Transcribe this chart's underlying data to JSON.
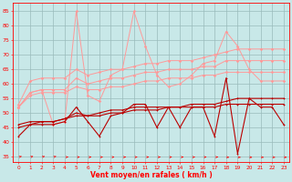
{
  "x": [
    0,
    1,
    2,
    3,
    4,
    5,
    6,
    7,
    8,
    9,
    10,
    11,
    12,
    13,
    14,
    15,
    16,
    17,
    18,
    19,
    20,
    21,
    22,
    23
  ],
  "line1": [
    52,
    57,
    58,
    46,
    47,
    85,
    56,
    54,
    63,
    65,
    85,
    73,
    63,
    59,
    60,
    63,
    67,
    68,
    78,
    73,
    65,
    61,
    61,
    61
  ],
  "line2": [
    53,
    61,
    62,
    62,
    62,
    65,
    63,
    64,
    65,
    65,
    66,
    67,
    67,
    68,
    68,
    68,
    69,
    70,
    71,
    72,
    72,
    72,
    72,
    72
  ],
  "line3": [
    52,
    57,
    58,
    58,
    58,
    62,
    60,
    61,
    62,
    62,
    63,
    64,
    64,
    65,
    65,
    65,
    66,
    66,
    68,
    68,
    68,
    68,
    68,
    68
  ],
  "line4": [
    52,
    56,
    57,
    57,
    57,
    59,
    58,
    58,
    59,
    59,
    60,
    61,
    61,
    62,
    62,
    62,
    63,
    63,
    64,
    64,
    64,
    64,
    64,
    64
  ],
  "line5": [
    42,
    46,
    46,
    46,
    47,
    52,
    47,
    42,
    49,
    50,
    53,
    53,
    45,
    52,
    45,
    52,
    52,
    42,
    62,
    36,
    55,
    52,
    52,
    46
  ],
  "line6": [
    46,
    47,
    47,
    47,
    48,
    50,
    49,
    50,
    51,
    51,
    52,
    52,
    52,
    52,
    52,
    53,
    53,
    53,
    54,
    55,
    55,
    55,
    55,
    55
  ],
  "line7": [
    45,
    46,
    47,
    47,
    48,
    49,
    49,
    49,
    50,
    50,
    51,
    51,
    51,
    52,
    52,
    52,
    52,
    52,
    53,
    53,
    53,
    53,
    53,
    53
  ],
  "color_light": "#FF9999",
  "color_dark": "#BB0000",
  "bg_color": "#C8E8E8",
  "grid_color": "#99BBBB",
  "xlabel": "Vent moyen/en rafales ( km/h )",
  "ylabel_ticks": [
    35,
    40,
    45,
    50,
    55,
    60,
    65,
    70,
    75,
    80,
    85
  ],
  "xlim": [
    -0.5,
    23.5
  ],
  "ylim": [
    33,
    88
  ]
}
